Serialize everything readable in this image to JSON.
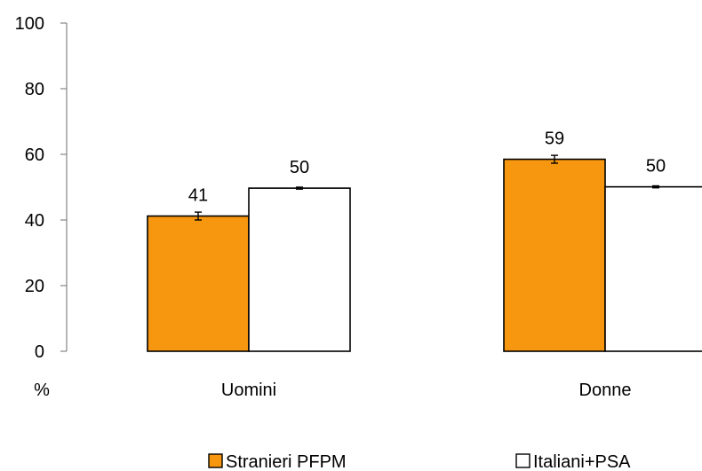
{
  "chart_data": {
    "type": "bar",
    "title": "",
    "xlabel": "",
    "ylabel": "%",
    "ylim": [
      0,
      100
    ],
    "yticks": [
      "0",
      "20",
      "40",
      "60",
      "80",
      "100"
    ],
    "categories": [
      "Uomini",
      "Donne"
    ],
    "series": [
      {
        "name": "Stranieri PFPM",
        "color": "#f7960f",
        "values": [
          41.2,
          58.5
        ],
        "error": [
          1.2,
          1.2
        ],
        "labels": [
          "41",
          "59"
        ]
      },
      {
        "name": "Italiani+PSA",
        "color": "#ffffff",
        "values": [
          49.7,
          50.1
        ],
        "error": [
          0.3,
          0.3
        ],
        "labels": [
          "50",
          "50"
        ]
      }
    ],
    "grid": false,
    "legend": "bottom"
  }
}
